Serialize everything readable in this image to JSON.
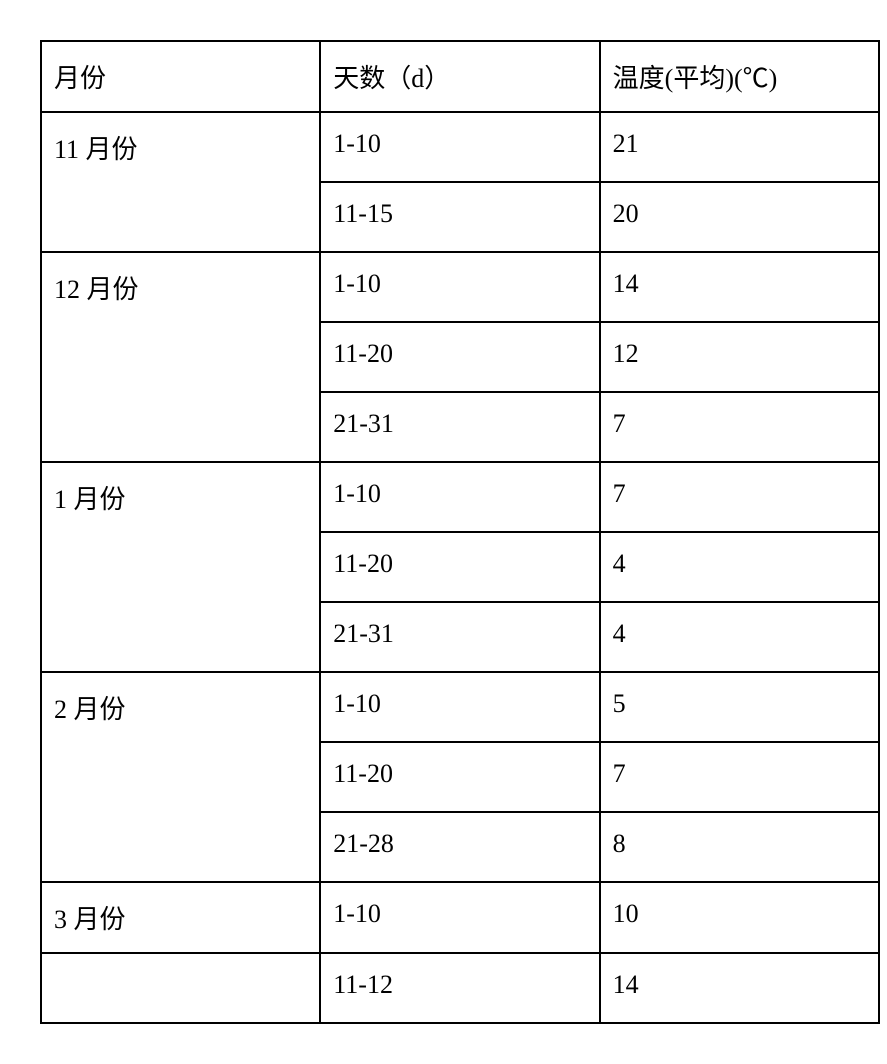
{
  "table": {
    "headers": {
      "month": "月份",
      "days": "天数（d）",
      "temp": "温度(平均)(℃)"
    },
    "rows": [
      {
        "month": "11 月份",
        "days": "1-10",
        "temp": "21",
        "rowspan": 2
      },
      {
        "month": "",
        "days": "11-15",
        "temp": "20",
        "rowspan": 0
      },
      {
        "month": "12 月份",
        "days": "1-10",
        "temp": "14",
        "rowspan": 3
      },
      {
        "month": "",
        "days": "11-20",
        "temp": "12",
        "rowspan": 0
      },
      {
        "month": "",
        "days": "21-31",
        "temp": "7",
        "rowspan": 0
      },
      {
        "month": "1 月份",
        "days": "1-10",
        "temp": "7",
        "rowspan": 3
      },
      {
        "month": "",
        "days": "11-20",
        "temp": "4",
        "rowspan": 0
      },
      {
        "month": "",
        "days": "21-31",
        "temp": "4",
        "rowspan": 0
      },
      {
        "month": "2 月份",
        "days": "1-10",
        "temp": "5",
        "rowspan": 3
      },
      {
        "month": "",
        "days": "11-20",
        "temp": "7",
        "rowspan": 0
      },
      {
        "month": "",
        "days": "21-28",
        "temp": "8",
        "rowspan": 0
      },
      {
        "month": "3 月份",
        "days": "1-10",
        "temp": "10",
        "rowspan": 1
      },
      {
        "month": "",
        "days": "11-12",
        "temp": "14",
        "rowspan": 1
      }
    ],
    "columns": {
      "month_width": 280,
      "days_width": 280,
      "temp_width": 280
    },
    "styling": {
      "border_color": "#000000",
      "border_width": 2,
      "font_size": 26,
      "cell_padding": 16,
      "background_color": "#ffffff",
      "text_color": "#000000"
    }
  }
}
